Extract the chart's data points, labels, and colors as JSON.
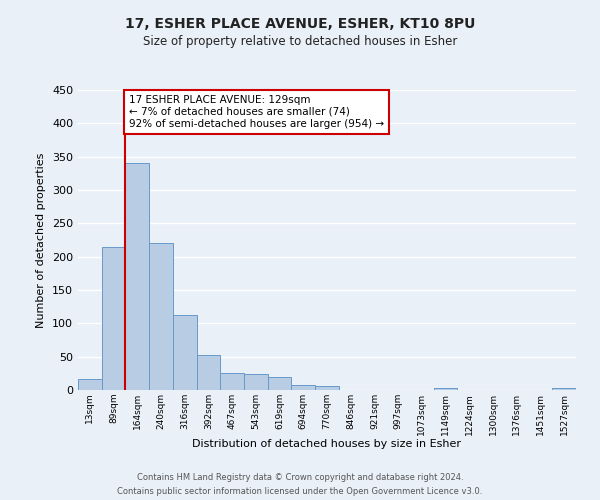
{
  "title": "17, ESHER PLACE AVENUE, ESHER, KT10 8PU",
  "subtitle": "Size of property relative to detached houses in Esher",
  "xlabel": "Distribution of detached houses by size in Esher",
  "ylabel": "Number of detached properties",
  "bar_labels": [
    "13sqm",
    "89sqm",
    "164sqm",
    "240sqm",
    "316sqm",
    "392sqm",
    "467sqm",
    "543sqm",
    "619sqm",
    "694sqm",
    "770sqm",
    "846sqm",
    "921sqm",
    "997sqm",
    "1073sqm",
    "1149sqm",
    "1224sqm",
    "1300sqm",
    "1376sqm",
    "1451sqm",
    "1527sqm"
  ],
  "bar_values": [
    17,
    215,
    340,
    221,
    113,
    53,
    26,
    24,
    19,
    7,
    6,
    0,
    0,
    0,
    0,
    3,
    0,
    0,
    0,
    0,
    3
  ],
  "bar_color": "#b8cce4",
  "bar_edge_color": "#6699cc",
  "bg_color": "#eaf0f8",
  "grid_color": "#ffffff",
  "ylim": [
    0,
    450
  ],
  "yticks": [
    0,
    50,
    100,
    150,
    200,
    250,
    300,
    350,
    400,
    450
  ],
  "property_line_x": 1.5,
  "property_line_color": "#cc0000",
  "annotation_line1": "17 ESHER PLACE AVENUE: 129sqm",
  "annotation_line2": "← 7% of detached houses are smaller (74)",
  "annotation_line3": "92% of semi-detached houses are larger (954) →",
  "annotation_box_color": "#cc0000",
  "footer_line1": "Contains HM Land Registry data © Crown copyright and database right 2024.",
  "footer_line2": "Contains public sector information licensed under the Open Government Licence v3.0."
}
